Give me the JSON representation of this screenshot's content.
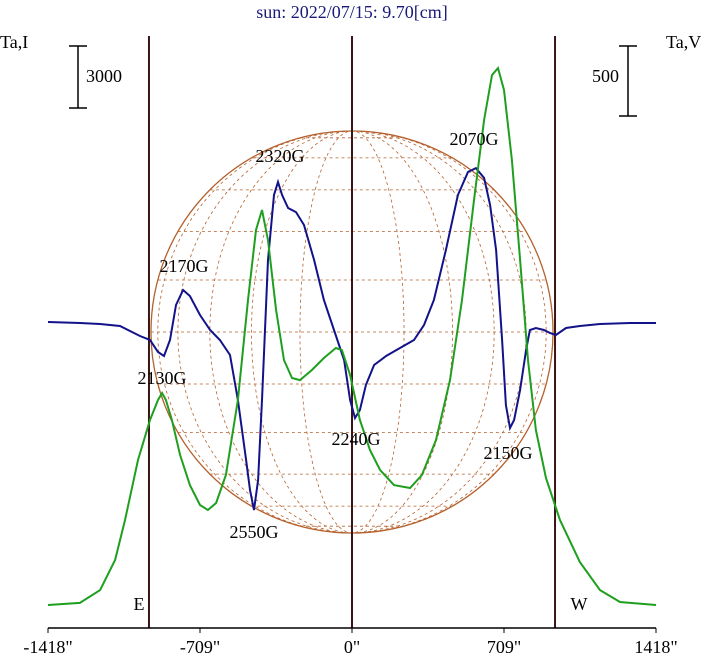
{
  "chart_data": {
    "type": "line",
    "title": "sun: 2022/07/15: 9.70[cm]",
    "ylabel": "Ta,I",
    "y2label": "Ta,V",
    "xlim": [
      -1418,
      1418
    ],
    "xticks": [
      {
        "value": -1418,
        "label": "-1418\""
      },
      {
        "value": -709,
        "label": "-709\""
      },
      {
        "value": 0,
        "label": "0\""
      },
      {
        "value": 709,
        "label": "709\""
      },
      {
        "value": 1418,
        "label": "1418\""
      }
    ],
    "ylim": [
      0,
      28650
    ],
    "y2lim": [
      0,
      4229
    ],
    "scale_bar_left": 3000,
    "scale_bar_right": 500,
    "meridian": 0,
    "limb_lines": [
      {
        "value": -947,
        "label": "E"
      },
      {
        "value": 947,
        "label": "W"
      }
    ],
    "series": [
      {
        "color": "#12128a",
        "x": [
          -1418,
          -1269,
          -1175,
          -1082,
          -989,
          -942,
          -905,
          -877,
          -849,
          -821,
          -788,
          -756,
          -709,
          -662,
          -616,
          -569,
          -532,
          -494,
          -476,
          -457,
          -438,
          -420,
          -392,
          -364,
          -345,
          -326,
          -298,
          -261,
          -224,
          -177,
          -131,
          -84,
          -37,
          -9,
          14,
          37,
          65,
          103,
          159,
          224,
          289,
          336,
          382,
          438,
          494,
          541,
          578,
          616,
          644,
          672,
          700,
          718,
          737,
          756,
          784,
          812,
          830,
          858,
          895,
          923,
          951,
          998,
          1063,
          1157,
          1297,
          1418
        ],
        "values": [
          14807,
          14760,
          14710,
          14614,
          14130,
          13936,
          13356,
          13162,
          13936,
          15630,
          16356,
          16065,
          15146,
          14420,
          13936,
          13210,
          11033,
          8130,
          6678,
          5710,
          7162,
          11033,
          17808,
          20953,
          21582,
          20953,
          20324,
          20130,
          19501,
          17808,
          15872,
          14420,
          12969,
          11033,
          10162,
          10549,
          11759,
          12727,
          13162,
          13549,
          13936,
          14662,
          15872,
          18291,
          20953,
          22066,
          22259,
          21776,
          20469,
          18291,
          13936,
          10791,
          9678,
          10065,
          11517,
          13452,
          14420,
          14517,
          14420,
          14275,
          14178,
          14517,
          14614,
          14710,
          14759,
          14759
        ]
      },
      {
        "color": "#1f9f1f",
        "axis": "y2",
        "x": [
          -1418,
          -1269,
          -1175,
          -1105,
          -1059,
          -998,
          -942,
          -905,
          -886,
          -868,
          -840,
          -802,
          -756,
          -709,
          -672,
          -634,
          -588,
          -532,
          -485,
          -448,
          -420,
          -392,
          -354,
          -317,
          -280,
          -243,
          -187,
          -131,
          -75,
          -47,
          -9,
          37,
          84,
          131,
          196,
          271,
          326,
          392,
          457,
          513,
          569,
          616,
          653,
          681,
          709,
          746,
          784,
          821,
          858,
          905,
          970,
          1063,
          1157,
          1250,
          1418
        ],
        "values": [
          164,
          179,
          271,
          486,
          771,
          1200,
          1486,
          1629,
          1679,
          1629,
          1486,
          1236,
          1021,
          879,
          843,
          893,
          1093,
          1629,
          2343,
          2843,
          2986,
          2771,
          2271,
          1914,
          1786,
          1771,
          1843,
          1929,
          2000,
          1986,
          1807,
          1486,
          1271,
          1129,
          1021,
          1000,
          1093,
          1343,
          1771,
          2343,
          3057,
          3629,
          3950,
          4000,
          3843,
          3343,
          2629,
          1914,
          1414,
          1071,
          771,
          471,
          271,
          186,
          164
        ]
      }
    ],
    "annotations": [
      "2320G",
      "2070G",
      "2170G",
      "2130G",
      "2240G",
      "2150G",
      "2550G"
    ]
  }
}
